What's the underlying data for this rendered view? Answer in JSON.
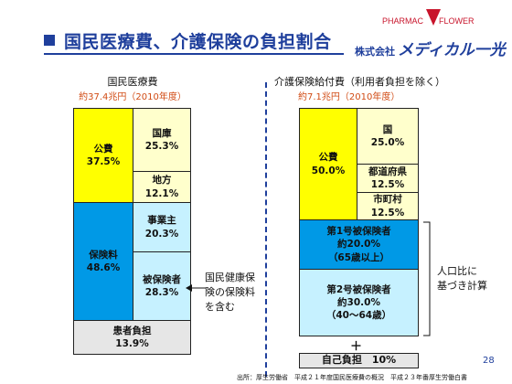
{
  "title": "国民医療費、介護保険の負担割合",
  "logo": {
    "brand_left": "PHARMAC",
    "brand_right": "FLOWER",
    "company_prefix": "株式会社",
    "company_name": "メディカル一光"
  },
  "left": {
    "header": "国民医療費",
    "subheader": "約37.4兆円（2010年度）",
    "public": {
      "label": "公費",
      "pct": "37.5%"
    },
    "national": {
      "label": "国庫",
      "pct": "25.3%"
    },
    "local": {
      "label": "地方",
      "pct": "12.1%"
    },
    "insurance": {
      "label": "保険料",
      "pct": "48.6%"
    },
    "employer": {
      "label": "事業主",
      "pct": "20.3%"
    },
    "insured": {
      "label": "被保険者",
      "pct": "28.3%"
    },
    "patient": {
      "label": "患者負担",
      "pct": "13.9%"
    },
    "note": [
      "国民健康保",
      "険の保険料",
      "を含む"
    ]
  },
  "right": {
    "header": "介護保険給付費（利用者負担を除く）",
    "subheader": "約7.1兆円（2010年度）",
    "public": {
      "label": "公費",
      "pct": "50.0%"
    },
    "national": {
      "label": "国",
      "pct": "25.0%"
    },
    "prefecture": {
      "label": "都道府県",
      "pct": "12.5%"
    },
    "municipality": {
      "label": "市町村",
      "pct": "12.5%"
    },
    "first_insured": {
      "label": "第1号被保険者",
      "pct": "約20.0%",
      "age": "（65歳以上）"
    },
    "second_insured": {
      "label": "第2号被保険者",
      "pct": "約30.0%",
      "age": "（40～64歳）"
    },
    "plus": "＋",
    "self_pay": "自己負担　10%",
    "note": [
      "人口比に",
      "基づき計算"
    ]
  },
  "page_number": "28",
  "source": "出所：厚生労働省　平成２１年度国民医療費の概況　平成２３年番厚生労働白書"
}
